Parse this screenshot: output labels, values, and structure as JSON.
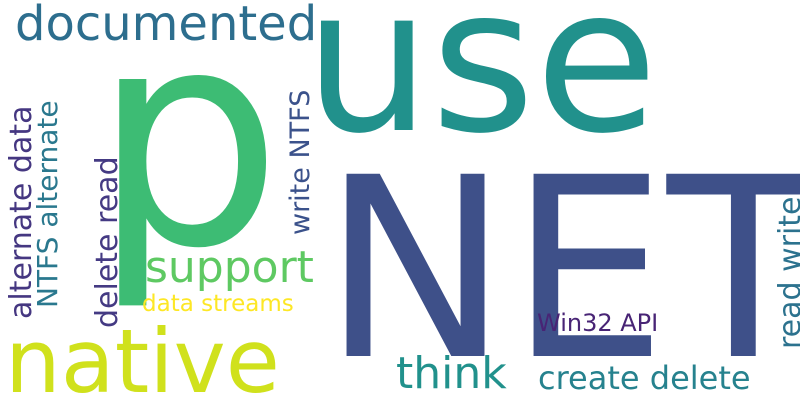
{
  "words": {
    "p": {
      "text": "p",
      "color": "#3dbc74"
    },
    "use": {
      "text": "use",
      "color": "#21918c"
    },
    "net": {
      "text": "NET",
      "color": "#3e5089"
    },
    "native": {
      "text": "native",
      "color": "#d0e11c"
    },
    "documented": {
      "text": "documented",
      "color": "#2d6e8e"
    },
    "support": {
      "text": "support",
      "color": "#5ec962"
    },
    "think": {
      "text": "think",
      "color": "#21918c"
    },
    "create_delete": {
      "text": "create delete",
      "color": "#26828e"
    },
    "win32_api": {
      "text": "Win32 API",
      "color": "#482475"
    },
    "data_streams": {
      "text": "data streams",
      "color": "#fde725"
    },
    "alternate_data": {
      "text": "alternate data",
      "color": "#453781"
    },
    "ntfs_alternate": {
      "text": "NTFS alternate",
      "color": "#2a788e"
    },
    "delete_read": {
      "text": "delete read",
      "color": "#443a83"
    },
    "write_ntfs": {
      "text": "write NTFS",
      "color": "#3b528b"
    },
    "read_write": {
      "text": "read write",
      "color": "#2c728e"
    }
  }
}
